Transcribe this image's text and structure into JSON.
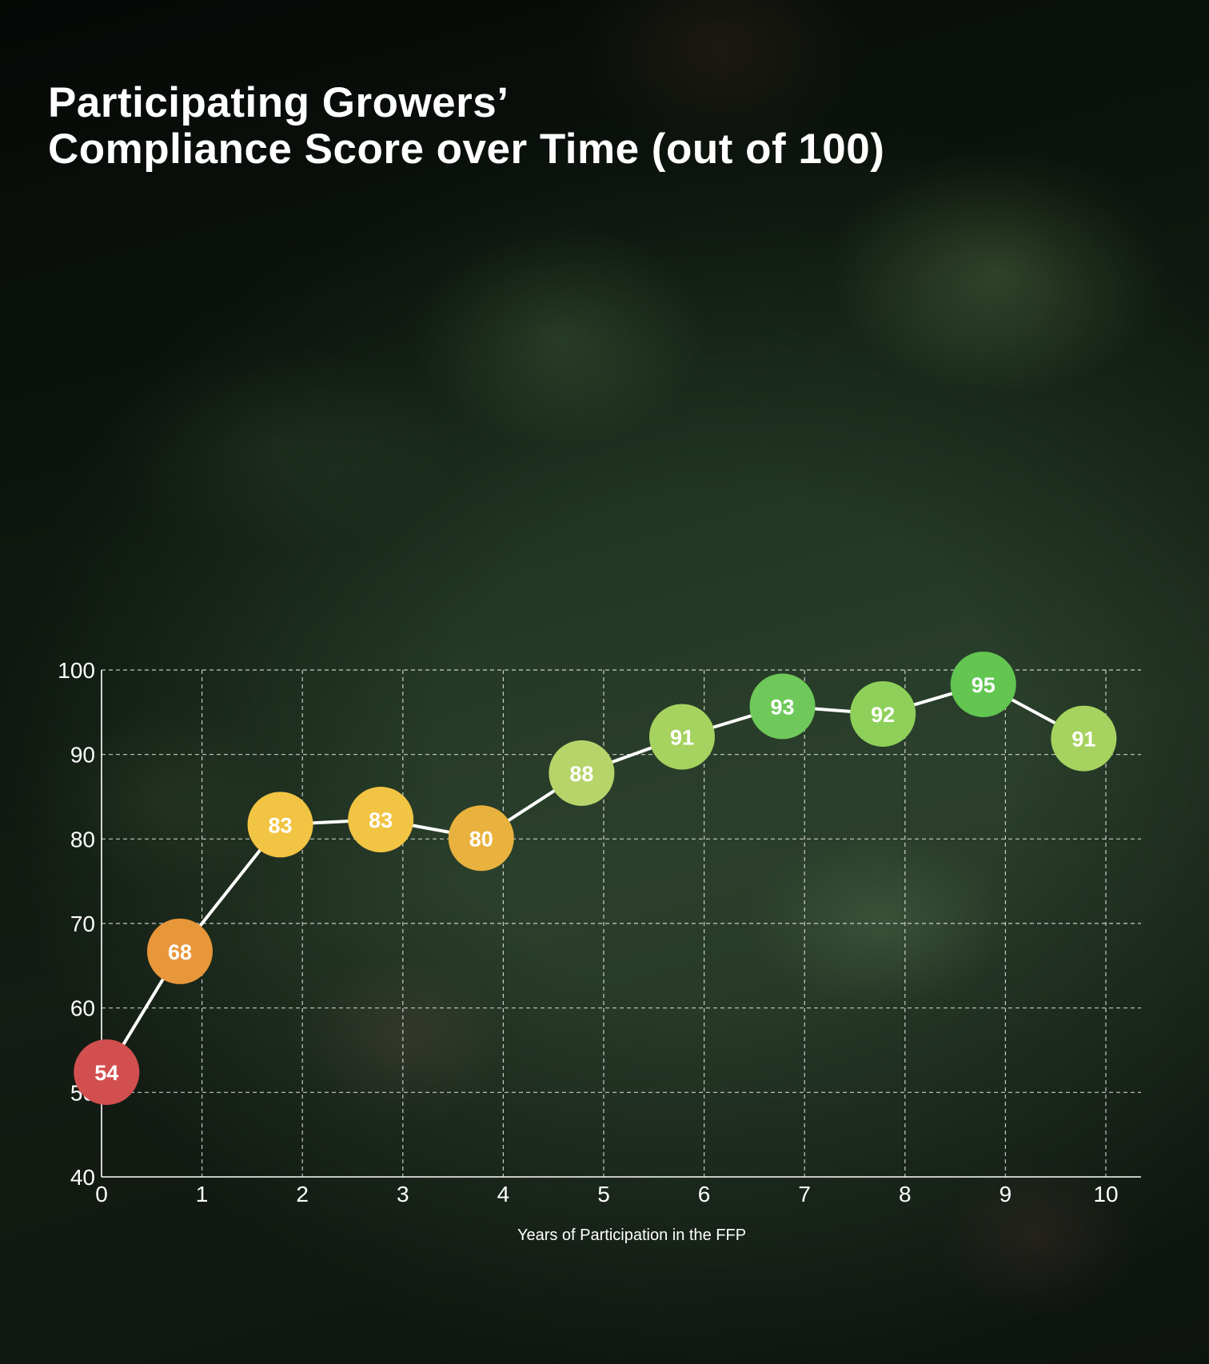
{
  "title": {
    "line1": "Participating Growers’",
    "line2": "Compliance Score over Time (out of 100)"
  },
  "chart_data": {
    "type": "line",
    "xlabel": "Years of Participation in the FFP",
    "ylabel": "",
    "x_ticks": [
      0,
      1,
      2,
      3,
      4,
      5,
      6,
      7,
      8,
      9,
      10
    ],
    "y_ticks": [
      40,
      50,
      60,
      70,
      80,
      90,
      100
    ],
    "xlim": [
      0,
      10.35
    ],
    "ylim": [
      40,
      100
    ],
    "grid": true,
    "series": [
      {
        "x": [
          0.05,
          0.78,
          1.78,
          2.78,
          3.78,
          4.78,
          5.78,
          6.78,
          7.78,
          8.78,
          9.78
        ],
        "values": [
          54,
          68,
          83,
          83,
          80,
          88,
          91,
          93,
          92,
          95,
          91
        ],
        "labels": [
          "54",
          "68",
          "83",
          "83",
          "80",
          "88",
          "91",
          "93",
          "92",
          "95",
          "91"
        ],
        "y_positions": [
          52.4,
          66.7,
          81.7,
          82.3,
          80.1,
          87.8,
          92.1,
          95.7,
          94.8,
          98.3,
          91.9
        ],
        "colors": [
          "#d24f4f",
          "#e8963a",
          "#f2c443",
          "#f2c443",
          "#e9b23e",
          "#b6d46a",
          "#a6d25f",
          "#6ec95a",
          "#8fd05a",
          "#62c651",
          "#a6d25f"
        ]
      }
    ],
    "line_color": "#ffffff"
  }
}
